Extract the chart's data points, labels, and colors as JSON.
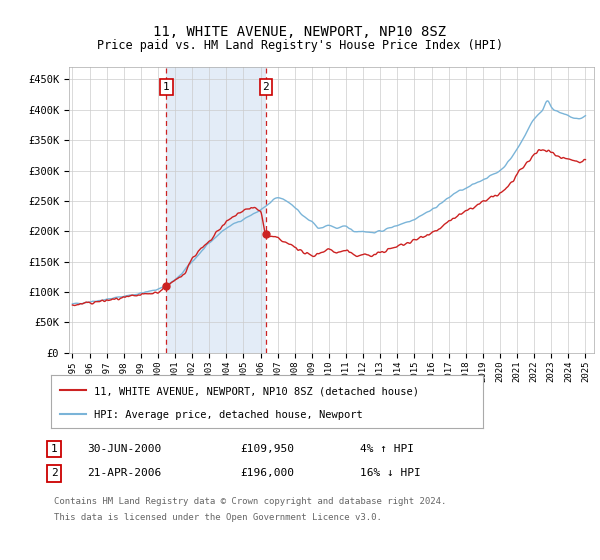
{
  "title": "11, WHITE AVENUE, NEWPORT, NP10 8SZ",
  "subtitle": "Price paid vs. HM Land Registry's House Price Index (HPI)",
  "ylabel_ticks": [
    "£0",
    "£50K",
    "£100K",
    "£150K",
    "£200K",
    "£250K",
    "£300K",
    "£350K",
    "£400K",
    "£450K"
  ],
  "ytick_values": [
    0,
    50000,
    100000,
    150000,
    200000,
    250000,
    300000,
    350000,
    400000,
    450000
  ],
  "ylim": [
    0,
    470000
  ],
  "xlim_start": 1994.8,
  "xlim_end": 2025.5,
  "sale1_x": 2000.5,
  "sale1_y": 109950,
  "sale1_label": "1",
  "sale1_date": "30-JUN-2000",
  "sale1_price": "£109,950",
  "sale1_hpi": "4% ↑ HPI",
  "sale2_x": 2006.3,
  "sale2_y": 196000,
  "sale2_label": "2",
  "sale2_date": "21-APR-2006",
  "sale2_price": "£196,000",
  "sale2_hpi": "16% ↓ HPI",
  "legend_line1": "11, WHITE AVENUE, NEWPORT, NP10 8SZ (detached house)",
  "legend_line2": "HPI: Average price, detached house, Newport",
  "footer_line1": "Contains HM Land Registry data © Crown copyright and database right 2024.",
  "footer_line2": "This data is licensed under the Open Government Licence v3.0.",
  "hpi_color": "#7ab4d8",
  "price_color": "#cc2222",
  "sale_marker_color": "#cc2222",
  "dashed_line_color": "#cc2222",
  "background_shading": "#dce8f5",
  "grid_color": "#cccccc",
  "box_color": "#cc0000",
  "hpi_seed_values": [
    [
      1995.0,
      80000
    ],
    [
      1996.0,
      84000
    ],
    [
      1997.0,
      88000
    ],
    [
      1998.0,
      93000
    ],
    [
      1999.0,
      98000
    ],
    [
      2000.0,
      105000
    ],
    [
      2001.0,
      120000
    ],
    [
      2002.0,
      150000
    ],
    [
      2003.0,
      180000
    ],
    [
      2004.0,
      205000
    ],
    [
      2005.0,
      220000
    ],
    [
      2006.0,
      235000
    ],
    [
      2006.5,
      245000
    ],
    [
      2007.0,
      255000
    ],
    [
      2007.5,
      250000
    ],
    [
      2008.0,
      240000
    ],
    [
      2008.5,
      225000
    ],
    [
      2009.0,
      215000
    ],
    [
      2009.5,
      205000
    ],
    [
      2010.0,
      210000
    ],
    [
      2010.5,
      205000
    ],
    [
      2011.0,
      208000
    ],
    [
      2011.5,
      200000
    ],
    [
      2012.0,
      200000
    ],
    [
      2012.5,
      198000
    ],
    [
      2013.0,
      200000
    ],
    [
      2013.5,
      205000
    ],
    [
      2014.0,
      210000
    ],
    [
      2014.5,
      215000
    ],
    [
      2015.0,
      220000
    ],
    [
      2015.5,
      228000
    ],
    [
      2016.0,
      235000
    ],
    [
      2016.5,
      245000
    ],
    [
      2017.0,
      255000
    ],
    [
      2017.5,
      265000
    ],
    [
      2018.0,
      270000
    ],
    [
      2018.5,
      278000
    ],
    [
      2019.0,
      285000
    ],
    [
      2019.5,
      292000
    ],
    [
      2020.0,
      300000
    ],
    [
      2020.5,
      315000
    ],
    [
      2021.0,
      335000
    ],
    [
      2021.5,
      360000
    ],
    [
      2022.0,
      385000
    ],
    [
      2022.5,
      400000
    ],
    [
      2022.8,
      415000
    ],
    [
      2023.0,
      405000
    ],
    [
      2023.5,
      395000
    ],
    [
      2024.0,
      390000
    ],
    [
      2024.5,
      385000
    ],
    [
      2025.0,
      390000
    ]
  ],
  "price_seed_values": [
    [
      1995.0,
      78000
    ],
    [
      1996.0,
      82000
    ],
    [
      1997.0,
      86000
    ],
    [
      1998.0,
      90000
    ],
    [
      1999.0,
      95000
    ],
    [
      2000.0,
      100000
    ],
    [
      2000.5,
      109950
    ],
    [
      2001.0,
      118000
    ],
    [
      2001.5,
      130000
    ],
    [
      2002.0,
      155000
    ],
    [
      2002.5,
      170000
    ],
    [
      2003.0,
      182000
    ],
    [
      2003.5,
      200000
    ],
    [
      2004.0,
      215000
    ],
    [
      2004.5,
      225000
    ],
    [
      2005.0,
      235000
    ],
    [
      2005.5,
      238000
    ],
    [
      2006.0,
      232000
    ],
    [
      2006.3,
      196000
    ],
    [
      2006.5,
      192000
    ],
    [
      2007.0,
      188000
    ],
    [
      2007.5,
      180000
    ],
    [
      2008.0,
      175000
    ],
    [
      2008.5,
      165000
    ],
    [
      2009.0,
      160000
    ],
    [
      2009.5,
      165000
    ],
    [
      2010.0,
      170000
    ],
    [
      2010.5,
      165000
    ],
    [
      2011.0,
      168000
    ],
    [
      2011.5,
      160000
    ],
    [
      2012.0,
      162000
    ],
    [
      2012.5,
      160000
    ],
    [
      2013.0,
      165000
    ],
    [
      2013.5,
      170000
    ],
    [
      2014.0,
      175000
    ],
    [
      2014.5,
      180000
    ],
    [
      2015.0,
      185000
    ],
    [
      2015.5,
      192000
    ],
    [
      2016.0,
      198000
    ],
    [
      2016.5,
      205000
    ],
    [
      2017.0,
      215000
    ],
    [
      2017.5,
      225000
    ],
    [
      2018.0,
      232000
    ],
    [
      2018.5,
      240000
    ],
    [
      2019.0,
      248000
    ],
    [
      2019.5,
      255000
    ],
    [
      2020.0,
      262000
    ],
    [
      2020.5,
      275000
    ],
    [
      2021.0,
      292000
    ],
    [
      2021.5,
      310000
    ],
    [
      2022.0,
      325000
    ],
    [
      2022.5,
      335000
    ],
    [
      2023.0,
      330000
    ],
    [
      2023.5,
      322000
    ],
    [
      2024.0,
      320000
    ],
    [
      2024.5,
      315000
    ],
    [
      2025.0,
      318000
    ]
  ]
}
